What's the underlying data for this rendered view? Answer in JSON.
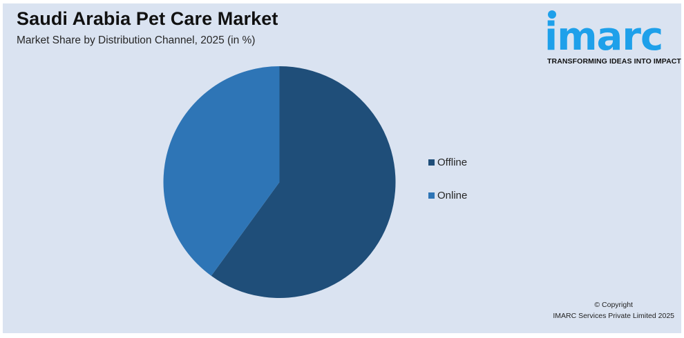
{
  "header": {
    "title": "Saudi Arabia Pet Care Market",
    "subtitle": "Market Share by Distribution Channel, 2025 (in %)"
  },
  "logo": {
    "wordmark": "imarc",
    "tagline": "TRANSFORMING IDEAS INTO IMPACT",
    "color": "#1ea0ea"
  },
  "legend": {
    "items": [
      {
        "label": "Offline",
        "color": "#1f4e79"
      },
      {
        "label": "Online",
        "color": "#2e75b6"
      }
    ]
  },
  "footer": {
    "copyright_line1": "© Copyright",
    "copyright_line2": "IMARC Services Private Limited 2025"
  },
  "colors": {
    "background": "#dae3f1",
    "offline": "#1f4e79",
    "online": "#2e75b6"
  },
  "chart_data": {
    "type": "pie",
    "title": "Saudi Arabia Pet Care Market",
    "subtitle": "Market Share by Distribution Channel, 2025 (in %)",
    "categories": [
      "Offline",
      "Online"
    ],
    "values": [
      60,
      40
    ],
    "colors": [
      "#1f4e79",
      "#2e75b6"
    ],
    "start_angle": "12 o'clock, clockwise",
    "data_labels_shown": false,
    "legend_position": "right"
  }
}
